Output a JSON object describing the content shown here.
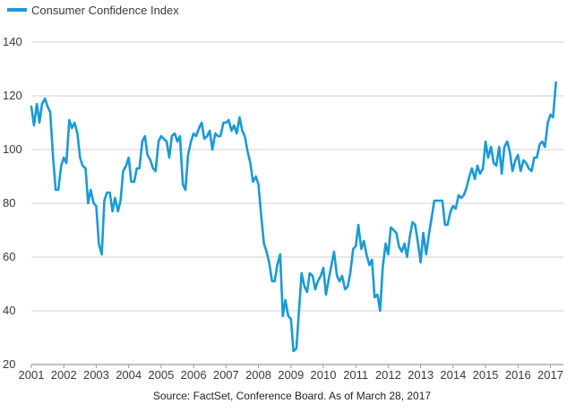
{
  "chart_data": {
    "type": "line",
    "title": "",
    "xlabel": "",
    "ylabel": "",
    "legend": {
      "position": "top-left",
      "entries": [
        "Consumer Confidence Index"
      ]
    },
    "grid": {
      "horizontal": true,
      "vertical": false
    },
    "ylim": [
      20,
      140
    ],
    "y_ticks": [
      20,
      40,
      60,
      80,
      100,
      120,
      140
    ],
    "xlim": [
      2001.0,
      2017.4
    ],
    "x_tick_labels": [
      "2001",
      "2002",
      "2003",
      "2004",
      "2005",
      "2006",
      "2007",
      "2008",
      "2009",
      "2010",
      "2011",
      "2012",
      "2013",
      "2014",
      "2015",
      "2016",
      "2017"
    ],
    "series": [
      {
        "name": "Consumer Confidence Index",
        "color": "#1a9ad6",
        "x": [
          2001.0,
          2001.08,
          2001.17,
          2001.25,
          2001.33,
          2001.42,
          2001.5,
          2001.58,
          2001.67,
          2001.75,
          2001.83,
          2001.92,
          2002.0,
          2002.08,
          2002.17,
          2002.25,
          2002.33,
          2002.42,
          2002.5,
          2002.58,
          2002.67,
          2002.75,
          2002.83,
          2002.92,
          2003.0,
          2003.08,
          2003.17,
          2003.25,
          2003.33,
          2003.42,
          2003.5,
          2003.58,
          2003.67,
          2003.75,
          2003.83,
          2003.92,
          2004.0,
          2004.08,
          2004.17,
          2004.25,
          2004.33,
          2004.42,
          2004.5,
          2004.58,
          2004.67,
          2004.75,
          2004.83,
          2004.92,
          2005.0,
          2005.08,
          2005.17,
          2005.25,
          2005.33,
          2005.42,
          2005.5,
          2005.58,
          2005.67,
          2005.75,
          2005.83,
          2005.92,
          2006.0,
          2006.08,
          2006.17,
          2006.25,
          2006.33,
          2006.42,
          2006.5,
          2006.58,
          2006.67,
          2006.75,
          2006.83,
          2006.92,
          2007.0,
          2007.08,
          2007.17,
          2007.25,
          2007.33,
          2007.42,
          2007.5,
          2007.58,
          2007.67,
          2007.75,
          2007.83,
          2007.92,
          2008.0,
          2008.08,
          2008.17,
          2008.25,
          2008.33,
          2008.42,
          2008.5,
          2008.58,
          2008.67,
          2008.75,
          2008.83,
          2008.92,
          2009.0,
          2009.08,
          2009.17,
          2009.25,
          2009.33,
          2009.42,
          2009.5,
          2009.58,
          2009.67,
          2009.75,
          2009.83,
          2009.92,
          2010.0,
          2010.08,
          2010.17,
          2010.25,
          2010.33,
          2010.42,
          2010.5,
          2010.58,
          2010.67,
          2010.75,
          2010.83,
          2010.92,
          2011.0,
          2011.08,
          2011.17,
          2011.25,
          2011.33,
          2011.42,
          2011.5,
          2011.58,
          2011.67,
          2011.75,
          2011.83,
          2011.92,
          2012.0,
          2012.08,
          2012.17,
          2012.25,
          2012.33,
          2012.42,
          2012.5,
          2012.58,
          2012.67,
          2012.75,
          2012.83,
          2012.92,
          2013.0,
          2013.08,
          2013.17,
          2013.25,
          2013.33,
          2013.42,
          2013.5,
          2013.58,
          2013.67,
          2013.75,
          2013.83,
          2013.92,
          2014.0,
          2014.08,
          2014.17,
          2014.25,
          2014.33,
          2014.42,
          2014.5,
          2014.58,
          2014.67,
          2014.75,
          2014.83,
          2014.92,
          2015.0,
          2015.08,
          2015.17,
          2015.25,
          2015.33,
          2015.42,
          2015.5,
          2015.58,
          2015.67,
          2015.75,
          2015.83,
          2015.92,
          2016.0,
          2016.08,
          2016.17,
          2016.25,
          2016.33,
          2016.42,
          2016.5,
          2016.58,
          2016.67,
          2016.75,
          2016.83,
          2016.92,
          2017.0,
          2017.08,
          2017.17
        ],
        "values": [
          116,
          109,
          117,
          110,
          117,
          119,
          116,
          114,
          97,
          85,
          85,
          94,
          97,
          95,
          111,
          108,
          110,
          106,
          97,
          94,
          93,
          80,
          85,
          80,
          79,
          65,
          61,
          81,
          84,
          84,
          77,
          82,
          77,
          81,
          92,
          94,
          97,
          88,
          88,
          93,
          93,
          103,
          105,
          98,
          96,
          93,
          92,
          103,
          105,
          104,
          103,
          97,
          105,
          106,
          103,
          105,
          87,
          85,
          98,
          103,
          106,
          105,
          108,
          110,
          104,
          105,
          107,
          100,
          106,
          105,
          105,
          110,
          110,
          111,
          107,
          109,
          106,
          112,
          107,
          105,
          99,
          95,
          88,
          90,
          87,
          76,
          65,
          62,
          58,
          51,
          51,
          57,
          61,
          38,
          44,
          38,
          37,
          25,
          26,
          40,
          54,
          49,
          47,
          54,
          53,
          48,
          51,
          53,
          56,
          46,
          52,
          57,
          62,
          53,
          51,
          53,
          48,
          49,
          54,
          63,
          64,
          72,
          63,
          66,
          61,
          57,
          59,
          45,
          46,
          40,
          56,
          65,
          61,
          71,
          70,
          69,
          64,
          62,
          65,
          60,
          68,
          73,
          72,
          65,
          58,
          69,
          61,
          68,
          74,
          81,
          81,
          81,
          81,
          72,
          72,
          77,
          79,
          78,
          83,
          82,
          83,
          86,
          90,
          93,
          89,
          94,
          91,
          93,
          103,
          97,
          101,
          95,
          94,
          101,
          91,
          101,
          103,
          99,
          92,
          96,
          98,
          92,
          96,
          95,
          93,
          92,
          97,
          97,
          102,
          103,
          101,
          110,
          113,
          112,
          125
        ]
      }
    ],
    "source": "Source: FactSet, Conference Board. As of March 28, 2017"
  }
}
